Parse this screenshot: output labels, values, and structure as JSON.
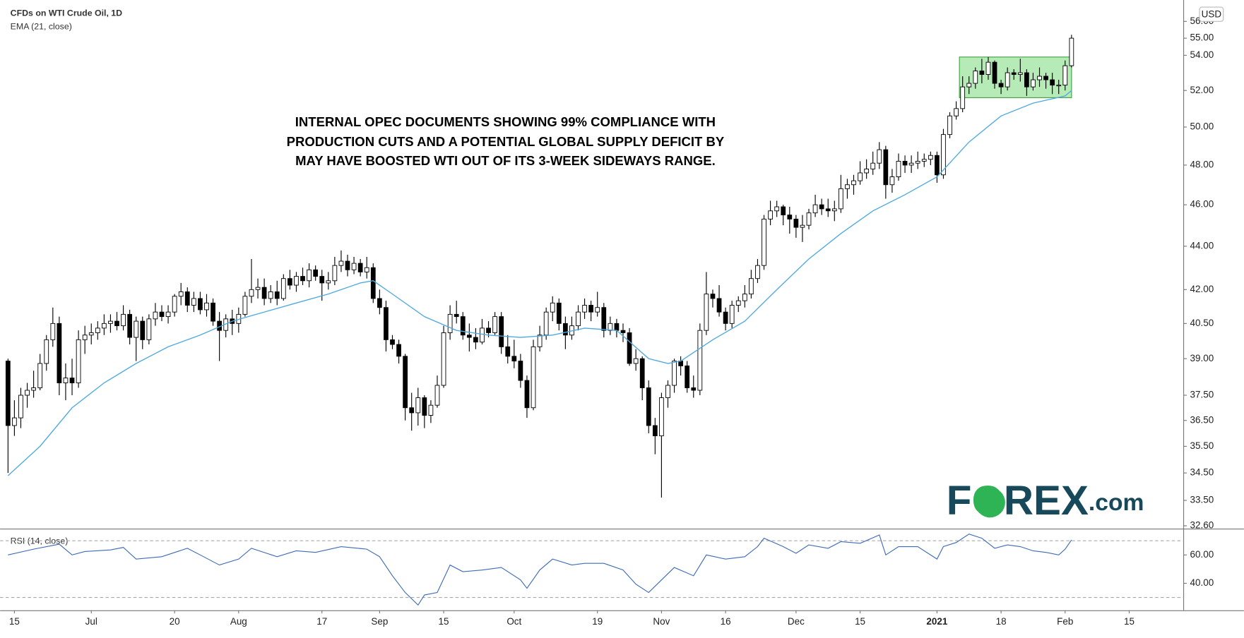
{
  "chart_data": {
    "type": "candlestick",
    "title": "CFDs on WTI Crude Oil, 1D",
    "currency": "USD",
    "annotation": [
      "INTERNAL OPEC DOCUMENTS SHOWING 99% COMPLIANCE WITH",
      "PRODUCTION CUTS AND A POTENTIAL GLOBAL SUPPLY DEFICIT BY",
      "MAY HAVE BOOSTED WTI OUT OF ITS 3-WEEK SIDEWAYS RANGE."
    ],
    "logo": [
      "F",
      "O",
      "REX",
      ".com"
    ],
    "log_scale": true,
    "up_color": "#ffffff",
    "down_color": "#000000",
    "xlim": [
      -1.24,
      183.5
    ],
    "xticks": [
      {
        "value": 1,
        "label": "15"
      },
      {
        "value": 13,
        "label": "Jul"
      },
      {
        "value": 26,
        "label": "20"
      },
      {
        "value": 36,
        "label": "Aug"
      },
      {
        "value": 49,
        "label": "17"
      },
      {
        "value": 58,
        "label": "Sep"
      },
      {
        "value": 68,
        "label": "15"
      },
      {
        "value": 79,
        "label": "Oct"
      },
      {
        "value": 92,
        "label": "19"
      },
      {
        "value": 102,
        "label": "Nov"
      },
      {
        "value": 112,
        "label": "16"
      },
      {
        "value": 123,
        "label": "Dec"
      },
      {
        "value": 133,
        "label": "15"
      },
      {
        "value": 145,
        "label": "2021"
      },
      {
        "value": 155,
        "label": "18"
      },
      {
        "value": 165,
        "label": "Feb"
      },
      {
        "value": 175,
        "label": "15"
      }
    ],
    "ylim": [
      32.5,
      57.3
    ],
    "yticks": [
      {
        "value": 32.6,
        "label": "32.60"
      },
      {
        "value": 33.5,
        "label": "33.50"
      },
      {
        "value": 34.5,
        "label": "34.50"
      },
      {
        "value": 35.5,
        "label": "35.50"
      },
      {
        "value": 36.5,
        "label": "36.50"
      },
      {
        "value": 37.5,
        "label": "37.50"
      },
      {
        "value": 39,
        "label": "39.00"
      },
      {
        "value": 40.5,
        "label": "40.50"
      },
      {
        "value": 42,
        "label": "42.00"
      },
      {
        "value": 44,
        "label": "44.00"
      },
      {
        "value": 46,
        "label": "46.00"
      },
      {
        "value": 48,
        "label": "48.00"
      },
      {
        "value": 50,
        "label": "50.00"
      },
      {
        "value": 52,
        "label": "52.00"
      },
      {
        "value": 54,
        "label": "54.00"
      },
      {
        "value": 55,
        "label": "55.00"
      },
      {
        "value": 56,
        "label": "56.00"
      }
    ],
    "highlight": {
      "xlim": [
        148.5,
        166
      ],
      "ylim": [
        51.6,
        53.9
      ],
      "color": "#9de39d"
    },
    "candles": [
      [
        38.9,
        39.0,
        34.5,
        36.3
      ],
      [
        36.3,
        37.3,
        35.9,
        36.6
      ],
      [
        36.6,
        37.8,
        36.2,
        37.5
      ],
      [
        37.5,
        38.0,
        37.0,
        37.7
      ],
      [
        37.7,
        38.5,
        37.4,
        37.8
      ],
      [
        37.8,
        39.2,
        37.7,
        38.8
      ],
      [
        38.8,
        40.0,
        38.5,
        39.8
      ],
      [
        39.8,
        41.2,
        39.5,
        40.5
      ],
      [
        40.5,
        40.8,
        37.5,
        38.0
      ],
      [
        38.0,
        38.8,
        37.3,
        38.2
      ],
      [
        38.2,
        39.0,
        37.5,
        38.0
      ],
      [
        38.0,
        40.2,
        37.8,
        39.8
      ],
      [
        39.8,
        40.4,
        39.2,
        40.0
      ],
      [
        40.0,
        40.5,
        39.6,
        40.1
      ],
      [
        40.1,
        40.6,
        39.8,
        40.3
      ],
      [
        40.3,
        40.9,
        40.0,
        40.5
      ],
      [
        40.5,
        40.9,
        40.1,
        40.6
      ],
      [
        40.6,
        41.0,
        40.2,
        40.4
      ],
      [
        40.4,
        41.3,
        40.2,
        40.9
      ],
      [
        40.9,
        41.1,
        39.6,
        39.9
      ],
      [
        39.9,
        40.8,
        38.9,
        40.6
      ],
      [
        40.6,
        40.8,
        39.4,
        39.8
      ],
      [
        39.8,
        40.9,
        39.6,
        40.7
      ],
      [
        40.7,
        41.4,
        40.4,
        41.0
      ],
      [
        41.0,
        41.3,
        40.6,
        40.8
      ],
      [
        40.8,
        41.3,
        40.5,
        41.0
      ],
      [
        41.0,
        41.8,
        40.8,
        41.7
      ],
      [
        41.7,
        42.3,
        41.3,
        41.9
      ],
      [
        41.9,
        42.1,
        41.0,
        41.3
      ],
      [
        41.3,
        41.9,
        41.0,
        41.6
      ],
      [
        41.6,
        41.9,
        40.9,
        41.1
      ],
      [
        41.1,
        41.8,
        40.8,
        41.4
      ],
      [
        41.4,
        41.6,
        40.4,
        40.6
      ],
      [
        40.6,
        41.0,
        38.9,
        40.2
      ],
      [
        40.2,
        40.9,
        39.9,
        40.7
      ],
      [
        40.7,
        41.1,
        40.0,
        40.5
      ],
      [
        40.5,
        41.2,
        40.1,
        40.9
      ],
      [
        40.9,
        41.9,
        40.8,
        41.7
      ],
      [
        41.7,
        43.4,
        41.4,
        42.0
      ],
      [
        42.0,
        42.5,
        41.6,
        42.1
      ],
      [
        42.1,
        42.5,
        41.3,
        41.6
      ],
      [
        41.6,
        42.2,
        41.4,
        41.9
      ],
      [
        41.9,
        42.4,
        41.3,
        41.6
      ],
      [
        41.6,
        42.7,
        41.5,
        42.5
      ],
      [
        42.5,
        42.9,
        42.0,
        42.2
      ],
      [
        42.2,
        42.8,
        41.9,
        42.6
      ],
      [
        42.6,
        43.0,
        42.2,
        42.4
      ],
      [
        42.4,
        43.2,
        42.1,
        42.9
      ],
      [
        42.9,
        43.1,
        42.4,
        42.6
      ],
      [
        42.6,
        42.9,
        41.5,
        42.3
      ],
      [
        42.3,
        42.8,
        42.0,
        42.4
      ],
      [
        42.4,
        43.5,
        42.2,
        43.1
      ],
      [
        43.1,
        43.8,
        42.8,
        43.3
      ],
      [
        43.3,
        43.6,
        42.6,
        42.9
      ],
      [
        42.9,
        43.5,
        42.7,
        43.2
      ],
      [
        43.2,
        43.4,
        42.6,
        42.8
      ],
      [
        42.8,
        43.5,
        42.5,
        43.0
      ],
      [
        43.0,
        43.2,
        41.4,
        41.6
      ],
      [
        41.6,
        42.0,
        40.9,
        41.2
      ],
      [
        41.2,
        41.5,
        39.3,
        39.8
      ],
      [
        39.8,
        40.0,
        39.4,
        39.6
      ],
      [
        39.6,
        39.8,
        38.8,
        39.1
      ],
      [
        39.1,
        39.2,
        36.5,
        37.0
      ],
      [
        37.0,
        37.6,
        36.1,
        36.8
      ],
      [
        36.8,
        37.8,
        36.3,
        37.4
      ],
      [
        37.4,
        37.5,
        36.2,
        36.7
      ],
      [
        36.7,
        37.3,
        36.4,
        37.1
      ],
      [
        37.1,
        38.3,
        37.0,
        37.9
      ],
      [
        37.9,
        40.4,
        37.8,
        40.1
      ],
      [
        40.1,
        41.3,
        39.8,
        40.9
      ],
      [
        40.9,
        41.5,
        40.5,
        40.8
      ],
      [
        40.8,
        41.0,
        39.8,
        40.0
      ],
      [
        40.0,
        40.5,
        39.3,
        39.9
      ],
      [
        39.9,
        40.3,
        39.4,
        39.7
      ],
      [
        39.7,
        40.7,
        39.6,
        40.3
      ],
      [
        40.3,
        40.6,
        39.9,
        40.1
      ],
      [
        40.1,
        41.0,
        40.0,
        40.8
      ],
      [
        40.8,
        41.0,
        39.2,
        39.5
      ],
      [
        39.5,
        40.0,
        38.8,
        39.1
      ],
      [
        39.1,
        39.8,
        38.6,
        38.9
      ],
      [
        38.9,
        39.2,
        37.8,
        38.1
      ],
      [
        38.1,
        38.3,
        36.6,
        37.0
      ],
      [
        37.0,
        39.8,
        36.9,
        39.5
      ],
      [
        39.5,
        40.4,
        39.3,
        40.0
      ],
      [
        40.0,
        41.2,
        39.8,
        41.0
      ],
      [
        41.0,
        41.7,
        40.6,
        41.4
      ],
      [
        41.4,
        41.6,
        40.2,
        40.5
      ],
      [
        40.5,
        40.8,
        39.4,
        40.0
      ],
      [
        40.0,
        40.8,
        39.8,
        40.4
      ],
      [
        40.4,
        41.3,
        40.2,
        41.0
      ],
      [
        41.0,
        41.6,
        40.7,
        41.3
      ],
      [
        41.3,
        41.5,
        40.6,
        41.0
      ],
      [
        41.0,
        41.9,
        40.8,
        41.2
      ],
      [
        41.2,
        41.4,
        39.9,
        40.2
      ],
      [
        40.2,
        40.8,
        40.0,
        40.5
      ],
      [
        40.5,
        40.7,
        39.9,
        40.2
      ],
      [
        40.2,
        40.5,
        39.7,
        40.1
      ],
      [
        40.1,
        40.3,
        38.7,
        38.8
      ],
      [
        38.8,
        39.4,
        38.5,
        39.0
      ],
      [
        39.0,
        39.1,
        37.3,
        37.8
      ],
      [
        37.8,
        38.1,
        36.0,
        36.3
      ],
      [
        36.3,
        36.6,
        35.2,
        35.9
      ],
      [
        35.9,
        37.6,
        33.6,
        37.4
      ],
      [
        37.4,
        38.1,
        37.0,
        37.9
      ],
      [
        37.9,
        39.0,
        37.6,
        38.9
      ],
      [
        38.9,
        39.1,
        38.3,
        38.7
      ],
      [
        38.7,
        38.9,
        37.6,
        37.8
      ],
      [
        37.8,
        38.3,
        37.4,
        37.7
      ],
      [
        37.7,
        40.5,
        37.5,
        40.2
      ],
      [
        40.2,
        42.8,
        40.0,
        41.8
      ],
      [
        41.8,
        42.0,
        41.2,
        41.6
      ],
      [
        41.6,
        42.2,
        40.8,
        41.0
      ],
      [
        41.0,
        41.2,
        40.2,
        40.5
      ],
      [
        40.5,
        41.5,
        40.3,
        41.3
      ],
      [
        41.3,
        41.7,
        41.0,
        41.5
      ],
      [
        41.5,
        42.2,
        41.2,
        41.8
      ],
      [
        41.8,
        42.9,
        41.6,
        42.5
      ],
      [
        42.5,
        43.4,
        42.3,
        43.1
      ],
      [
        43.1,
        45.5,
        42.9,
        45.3
      ],
      [
        45.3,
        46.2,
        45.0,
        45.7
      ],
      [
        45.7,
        46.2,
        45.4,
        45.9
      ],
      [
        45.9,
        46.0,
        45.0,
        45.5
      ],
      [
        45.5,
        45.9,
        44.6,
        45.3
      ],
      [
        45.3,
        45.5,
        44.4,
        44.9
      ],
      [
        44.9,
        45.5,
        44.2,
        45.0
      ],
      [
        45.0,
        45.8,
        44.8,
        45.6
      ],
      [
        45.6,
        46.5,
        45.4,
        46.0
      ],
      [
        46.0,
        46.3,
        45.5,
        45.8
      ],
      [
        45.8,
        46.3,
        45.4,
        45.7
      ],
      [
        45.7,
        46.2,
        45.2,
        45.8
      ],
      [
        45.8,
        47.5,
        45.6,
        46.8
      ],
      [
        46.8,
        47.3,
        46.3,
        47.0
      ],
      [
        47.0,
        47.5,
        46.5,
        47.2
      ],
      [
        47.2,
        48.2,
        47.0,
        47.6
      ],
      [
        47.6,
        48.3,
        47.3,
        47.8
      ],
      [
        47.8,
        48.7,
        47.5,
        48.1
      ],
      [
        48.1,
        49.2,
        47.8,
        48.8
      ],
      [
        48.8,
        49.0,
        46.3,
        47.0
      ],
      [
        47.0,
        47.8,
        46.6,
        47.4
      ],
      [
        47.4,
        48.6,
        47.2,
        48.2
      ],
      [
        48.2,
        48.5,
        47.6,
        48.0
      ],
      [
        48.0,
        48.5,
        47.6,
        48.1
      ],
      [
        48.1,
        48.7,
        47.8,
        48.2
      ],
      [
        48.2,
        48.6,
        47.9,
        48.3
      ],
      [
        48.3,
        48.7,
        48.0,
        48.5
      ],
      [
        48.5,
        48.7,
        47.1,
        47.5
      ],
      [
        47.5,
        49.9,
        47.3,
        49.6
      ],
      [
        49.6,
        50.8,
        49.4,
        50.6
      ],
      [
        50.6,
        51.4,
        50.4,
        51.0
      ],
      [
        51.0,
        52.8,
        50.8,
        52.2
      ],
      [
        52.2,
        52.8,
        51.8,
        52.4
      ],
      [
        52.4,
        53.3,
        52.1,
        53.1
      ],
      [
        53.1,
        53.8,
        52.4,
        52.9
      ],
      [
        52.9,
        53.9,
        52.6,
        53.6
      ],
      [
        53.6,
        53.7,
        52.1,
        52.4
      ],
      [
        52.4,
        52.6,
        51.8,
        52.2
      ],
      [
        52.2,
        53.3,
        52.0,
        53.0
      ],
      [
        53.0,
        53.2,
        52.6,
        52.9
      ],
      [
        52.9,
        53.8,
        52.5,
        53.0
      ],
      [
        53.0,
        53.2,
        51.7,
        52.2
      ],
      [
        52.2,
        53.0,
        52.0,
        52.6
      ],
      [
        52.6,
        53.3,
        52.2,
        52.8
      ],
      [
        52.8,
        53.0,
        52.1,
        52.6
      ],
      [
        52.6,
        53.0,
        51.8,
        52.3
      ],
      [
        52.3,
        52.6,
        51.8,
        52.3
      ],
      [
        52.3,
        53.7,
        52.0,
        53.4
      ],
      [
        53.4,
        55.2,
        53.3,
        55.0
      ]
    ],
    "ema": {
      "name": "EMA (21, close)",
      "color": "#4ea9e0",
      "x": [
        0,
        5,
        10,
        15,
        20,
        25,
        30,
        35,
        40,
        45,
        50,
        55,
        57,
        60,
        65,
        70,
        75,
        80,
        85,
        90,
        95,
        100,
        103,
        105,
        110,
        115,
        120,
        125,
        130,
        135,
        140,
        145,
        150,
        155,
        160,
        165,
        166
      ],
      "values": [
        34.4,
        35.5,
        37.0,
        38.0,
        38.8,
        39.5,
        40.0,
        40.6,
        41.0,
        41.4,
        41.8,
        42.3,
        42.4,
        41.8,
        40.8,
        40.2,
        40.0,
        39.9,
        40.0,
        40.3,
        40.2,
        39.0,
        38.8,
        38.9,
        39.8,
        40.6,
        42.0,
        43.4,
        44.6,
        45.7,
        46.5,
        47.4,
        49.2,
        50.6,
        51.3,
        51.7,
        52.0
      ]
    },
    "rsi": {
      "name": "RSI (14, close)",
      "color": "#3d6ab8",
      "ylim": [
        21,
        78
      ],
      "yticks": [
        {
          "value": 60,
          "label": "60.00"
        },
        {
          "value": 40,
          "label": "40.00"
        }
      ],
      "levels": [
        70,
        30
      ],
      "x": [
        0,
        4,
        8,
        10,
        12,
        16,
        18,
        20,
        24,
        28,
        30,
        33,
        36,
        38,
        42,
        45,
        48,
        52,
        56,
        58,
        60,
        62,
        64,
        65,
        67,
        69,
        71,
        74,
        77,
        80,
        81,
        83,
        85,
        88,
        90,
        93,
        96,
        98,
        100,
        102,
        104,
        107,
        109,
        112,
        115,
        117,
        118,
        121,
        123,
        125,
        128,
        130,
        133,
        136,
        137,
        139,
        142,
        145,
        146,
        148,
        150,
        152,
        154,
        156,
        158,
        160,
        162,
        164,
        165,
        166
      ],
      "values": [
        60,
        64.1,
        67.6,
        60,
        62.4,
        63.5,
        65.3,
        57.1,
        58.8,
        64.7,
        60,
        52.9,
        57.1,
        64.7,
        58.8,
        62.9,
        61.8,
        65.9,
        64.1,
        58.8,
        45.3,
        33.5,
        24.7,
        31.8,
        33.5,
        52.9,
        48.2,
        49.4,
        51.2,
        42.4,
        36.5,
        49.4,
        57.1,
        52.9,
        54.1,
        54.1,
        49.4,
        39.4,
        33.5,
        42.4,
        51.2,
        45.3,
        60,
        57.1,
        58.8,
        65.9,
        71.8,
        65.9,
        61.2,
        67.1,
        64.7,
        69.4,
        68.2,
        74.1,
        60,
        65.9,
        65.9,
        57.1,
        65.9,
        68.8,
        74.7,
        71.8,
        64.7,
        67.1,
        65.9,
        62.9,
        61.8,
        60,
        64.1,
        70.6
      ]
    }
  }
}
